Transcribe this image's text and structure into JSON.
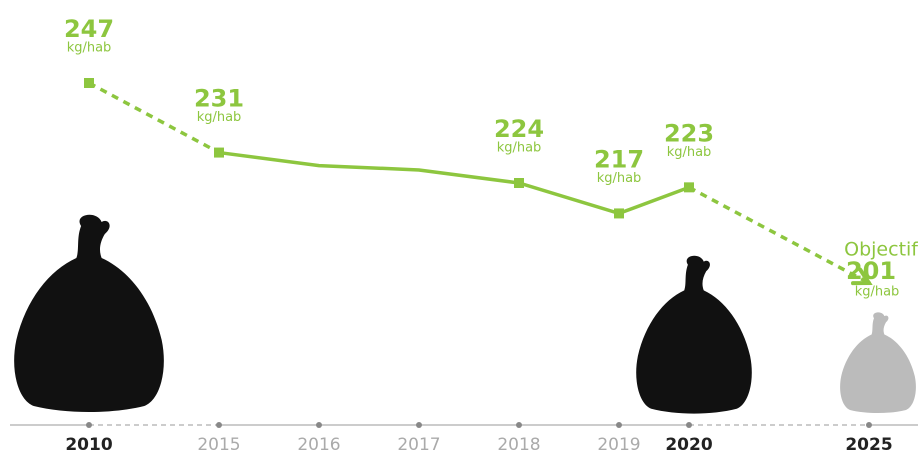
{
  "chart_data": {
    "type": "line",
    "categories": [
      "2010",
      "2015",
      "2016",
      "2017",
      "2018",
      "2019",
      "2020",
      "2025"
    ],
    "values": [
      247,
      231,
      228,
      227,
      224,
      217,
      223,
      201
    ],
    "color": "#8dc63f",
    "unit": "kg/hab",
    "annotation": "Objectif",
    "labeled_points": [
      0,
      1,
      4,
      5,
      6,
      7
    ],
    "bold_categories": [
      0,
      6,
      7
    ],
    "dashed_segments": [
      0,
      6
    ]
  }
}
